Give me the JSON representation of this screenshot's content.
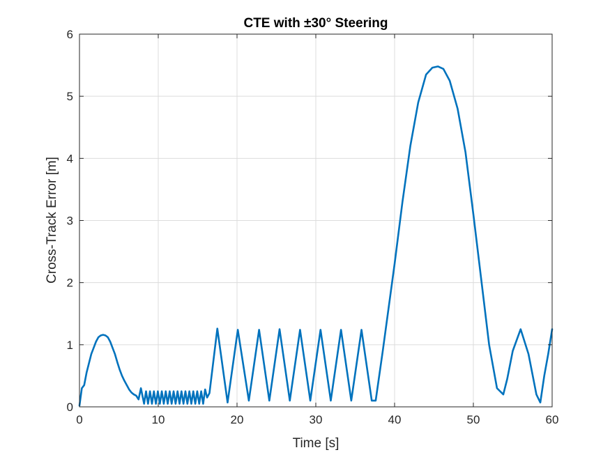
{
  "chart_data": {
    "type": "line",
    "title": "CTE with ±30° Steering",
    "xlabel": "Time [s]",
    "ylabel": "Cross-Track Error [m]",
    "xlim": [
      0,
      60
    ],
    "ylim": [
      0,
      6
    ],
    "xticks": [
      "0",
      "10",
      "20",
      "30",
      "40",
      "50",
      "60"
    ],
    "yticks": [
      "0",
      "1",
      "2",
      "3",
      "4",
      "5",
      "6"
    ],
    "grid": true,
    "line_color": "#0072BD",
    "series": [
      {
        "x": [
          0,
          0.3,
          0.6,
          0.9,
          1.2,
          1.5,
          1.8,
          2.1,
          2.4,
          2.7,
          3.0,
          3.3,
          3.6,
          3.9,
          4.2,
          4.5,
          4.8,
          5.1,
          5.4,
          5.7,
          6.0,
          6.3,
          6.6,
          6.9,
          7.2,
          7.5,
          7.8,
          8.2,
          8.45,
          8.7,
          8.95,
          9.2,
          9.45,
          9.7,
          9.95,
          10.2,
          10.45,
          10.7,
          10.95,
          11.2,
          11.45,
          11.7,
          11.95,
          12.2,
          12.45,
          12.7,
          12.95,
          13.2,
          13.45,
          13.7,
          13.95,
          14.2,
          14.45,
          14.7,
          14.95,
          15.2,
          15.45,
          15.7,
          15.95,
          16.2,
          16.5,
          17.5,
          18.8,
          20.1,
          21.5,
          22.8,
          24.1,
          25.4,
          26.7,
          28.0,
          29.3,
          30.6,
          31.9,
          33.2,
          34.5,
          35.8,
          37.1,
          37.6,
          38.5,
          40.0,
          41.0,
          42.0,
          43.0,
          44.0,
          44.8,
          45.5,
          46.2,
          47.0,
          48.0,
          49.0,
          50.0,
          51.0,
          52.0,
          53.0,
          53.8,
          54.3,
          55.0,
          56.0,
          57.0,
          58.0,
          58.5,
          59.0,
          59.5,
          60.0
        ],
        "y": [
          0.02,
          0.3,
          0.35,
          0.55,
          0.7,
          0.85,
          0.95,
          1.05,
          1.12,
          1.15,
          1.16,
          1.15,
          1.12,
          1.05,
          0.95,
          0.85,
          0.72,
          0.6,
          0.5,
          0.42,
          0.35,
          0.28,
          0.23,
          0.2,
          0.18,
          0.12,
          0.3,
          0.05,
          0.25,
          0.05,
          0.25,
          0.05,
          0.25,
          0.05,
          0.25,
          0.05,
          0.25,
          0.05,
          0.25,
          0.05,
          0.25,
          0.05,
          0.25,
          0.05,
          0.25,
          0.05,
          0.25,
          0.05,
          0.25,
          0.05,
          0.25,
          0.05,
          0.25,
          0.05,
          0.25,
          0.05,
          0.25,
          0.05,
          0.28,
          0.15,
          0.22,
          1.26,
          0.07,
          1.24,
          0.1,
          1.24,
          0.1,
          1.25,
          0.1,
          1.24,
          0.1,
          1.24,
          0.1,
          1.24,
          0.1,
          1.24,
          0.1,
          0.1,
          0.9,
          2.3,
          3.3,
          4.2,
          4.9,
          5.35,
          5.46,
          5.48,
          5.44,
          5.25,
          4.8,
          4.1,
          3.1,
          2.05,
          1.0,
          0.3,
          0.2,
          0.45,
          0.9,
          1.25,
          0.85,
          0.2,
          0.07,
          0.5,
          0.85,
          1.25
        ]
      }
    ]
  }
}
